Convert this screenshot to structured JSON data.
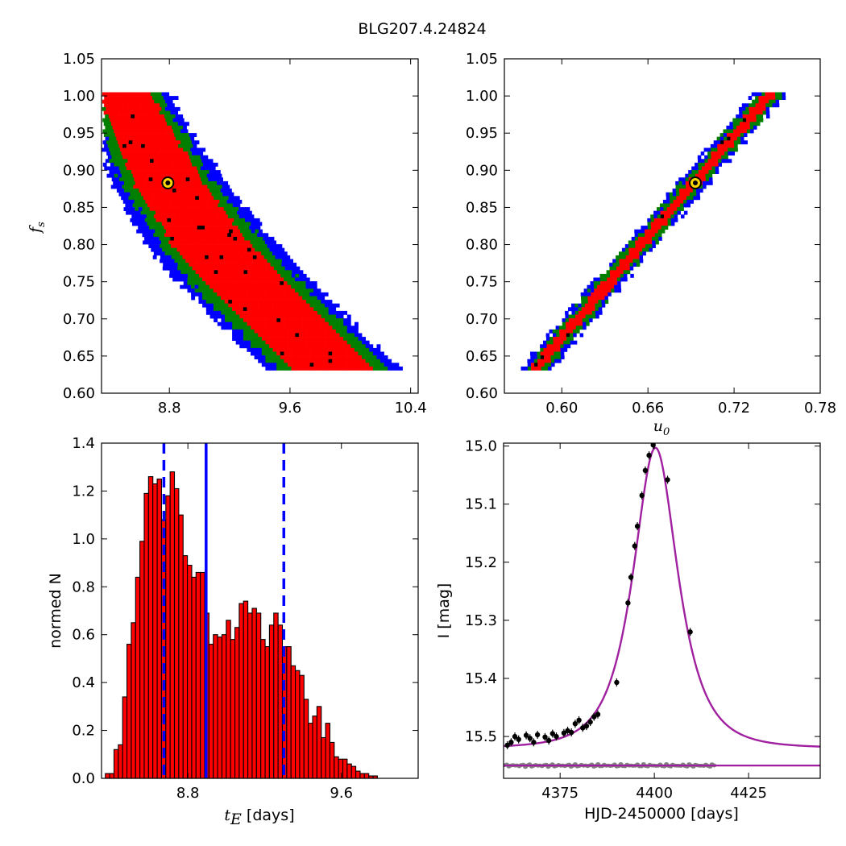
{
  "title": "BLG207.4.24824",
  "chart_data": [
    {
      "id": "fs_vs_tE",
      "type": "heatmap",
      "xlabel": "",
      "ylabel": "f_s",
      "xlim": [
        8.35,
        10.45
      ],
      "ylim": [
        0.6,
        1.05
      ],
      "xticks": [
        "8.8",
        "9.6",
        "10.4"
      ],
      "yticks": [
        "0.60",
        "0.65",
        "0.70",
        "0.75",
        "0.80",
        "0.85",
        "0.90",
        "0.95",
        "1.00",
        "1.05"
      ],
      "confidence_colors": {
        "inner": "#ff0000",
        "middle": "#007f00",
        "outer": "#0000ff",
        "best_cells": "#000000"
      },
      "ridge": [
        [
          8.5,
          1.005
        ],
        [
          8.8,
          0.88
        ],
        [
          9.1,
          0.795
        ],
        [
          9.3,
          0.75
        ],
        [
          9.55,
          0.7
        ],
        [
          9.82,
          0.645
        ]
      ],
      "best_fit": {
        "x": 8.79,
        "y": 0.883
      }
    },
    {
      "id": "fs_vs_u0",
      "type": "heatmap",
      "xlabel": "u_0",
      "ylabel": "",
      "xlim": [
        0.56,
        0.78
      ],
      "ylim": [
        0.6,
        1.05
      ],
      "xticks": [
        "0.60",
        "0.66",
        "0.72",
        "0.78"
      ],
      "yticks": [
        "0.60",
        "0.65",
        "0.70",
        "0.75",
        "0.80",
        "0.85",
        "0.90",
        "0.95",
        "1.00",
        "1.05"
      ],
      "confidence_colors": {
        "inner": "#ff0000",
        "middle": "#007f00",
        "outer": "#0000ff",
        "best_cells": "#000000"
      },
      "ridge": [
        [
          0.584,
          0.638
        ],
        [
          0.692,
          0.883
        ],
        [
          0.746,
          1.005
        ]
      ],
      "best_fit": {
        "x": 0.693,
        "y": 0.883
      }
    },
    {
      "id": "tE_histogram",
      "type": "bar",
      "xlabel": "t_E [days]",
      "ylabel": "normed N",
      "xlim": [
        8.35,
        10.0
      ],
      "ylim": [
        0.0,
        1.4
      ],
      "xticks": [
        "8.8",
        "9.6"
      ],
      "yticks": [
        "0.0",
        "0.2",
        "0.4",
        "0.6",
        "0.8",
        "1.0",
        "1.2",
        "1.4"
      ],
      "bar_color": "#ff0000",
      "bin_start": 8.37,
      "bin_width": 0.0225,
      "values": [
        0.02,
        0.02,
        0.12,
        0.14,
        0.34,
        0.56,
        0.65,
        0.84,
        0.99,
        1.19,
        1.26,
        1.23,
        1.25,
        1.08,
        1.18,
        1.28,
        1.21,
        1.1,
        0.93,
        0.89,
        0.84,
        0.86,
        0.86,
        0.69,
        0.56,
        0.6,
        0.59,
        0.6,
        0.66,
        0.58,
        0.63,
        0.73,
        0.74,
        0.69,
        0.71,
        0.69,
        0.58,
        0.55,
        0.64,
        0.69,
        0.64,
        0.55,
        0.55,
        0.47,
        0.45,
        0.43,
        0.33,
        0.23,
        0.26,
        0.3,
        0.17,
        0.23,
        0.15,
        0.09,
        0.08,
        0.08,
        0.06,
        0.05,
        0.03,
        0.02,
        0.02,
        0.01,
        0.01
      ],
      "lines": [
        {
          "x": 8.675,
          "style": "dashed",
          "color": "#0000ff"
        },
        {
          "x": 8.895,
          "style": "solid",
          "color": "#0000ff"
        },
        {
          "x": 9.3,
          "style": "dashed",
          "color": "#0000ff"
        }
      ]
    },
    {
      "id": "light_curve",
      "type": "scatter",
      "xlabel": "HJD-2450000 [days]",
      "ylabel": "I [mag]",
      "xlim": [
        4360,
        4444
      ],
      "ylim": [
        15.572,
        14.995
      ],
      "xticks": [
        "4375",
        "4400",
        "4425"
      ],
      "yticks": [
        "15.0",
        "15.1",
        "15.2",
        "15.3",
        "15.4",
        "15.5"
      ],
      "model": {
        "t0": 4400.3,
        "tE": 8.8,
        "u0": 0.693,
        "fs": 0.883,
        "I_base": 15.52,
        "color": "#a020a0"
      },
      "data_color": "#000000",
      "residual_color": "#808080",
      "residual_baseline": 15.55,
      "points": [
        [
          4361,
          15.515
        ],
        [
          4362,
          15.51
        ],
        [
          4363,
          15.5
        ],
        [
          4364,
          15.505
        ],
        [
          4366,
          15.498
        ],
        [
          4367,
          15.503
        ],
        [
          4368,
          15.51
        ],
        [
          4369,
          15.497
        ],
        [
          4371,
          15.501
        ],
        [
          4372,
          15.507
        ],
        [
          4373,
          15.495
        ],
        [
          4374,
          15.5
        ],
        [
          4376,
          15.494
        ],
        [
          4377,
          15.49
        ],
        [
          4378,
          15.493
        ],
        [
          4379,
          15.478
        ],
        [
          4380,
          15.472
        ],
        [
          4381,
          15.485
        ],
        [
          4382,
          15.482
        ],
        [
          4383,
          15.475
        ],
        [
          4384,
          15.466
        ],
        [
          4385,
          15.462
        ],
        [
          4390,
          15.407
        ],
        [
          4393,
          15.27
        ],
        [
          4393.8,
          15.226
        ],
        [
          4394.8,
          15.172
        ],
        [
          4395.5,
          15.138
        ],
        [
          4396.7,
          15.085
        ],
        [
          4397.6,
          15.042
        ],
        [
          4398.6,
          15.016
        ],
        [
          4399.7,
          14.998
        ],
        [
          4403.5,
          15.058
        ],
        [
          4409.5,
          15.32
        ]
      ]
    }
  ]
}
